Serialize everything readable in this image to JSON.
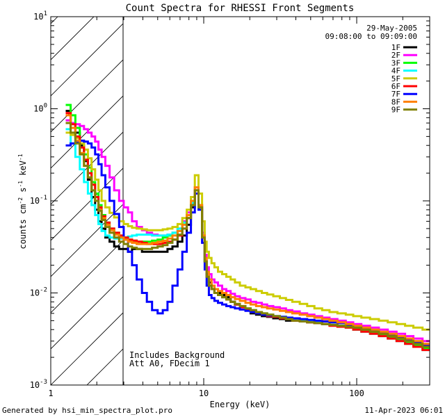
{
  "chart_data": {
    "type": "line",
    "title": "Count Spectra for RHESSI Front Segments",
    "xlabel": "Energy (keV)",
    "ylabel_base": "counts cm",
    "ylabel_sup1": "-2",
    "ylabel_mid": " s",
    "ylabel_sup2": "-1",
    "ylabel_end": " keV",
    "ylabel_sup3": "-1",
    "xscale": "log",
    "yscale": "log",
    "xlim": [
      1,
      300
    ],
    "ylim": [
      0.001,
      10
    ],
    "x_ticks": [
      {
        "value": 1,
        "label": "1"
      },
      {
        "value": 10,
        "label": "10"
      },
      {
        "value": 100,
        "label": "100"
      }
    ],
    "y_ticks": [
      {
        "value": 0.001,
        "base": "10",
        "exp": "-3"
      },
      {
        "value": 0.01,
        "base": "10",
        "exp": "-2"
      },
      {
        "value": 0.1,
        "base": "10",
        "exp": "-1"
      },
      {
        "value": 1,
        "base": "10",
        "exp": "0"
      },
      {
        "value": 10,
        "base": "10",
        "exp": "1"
      }
    ],
    "hatched_region": {
      "x_from": 1,
      "x_to": 3
    },
    "date": "29-May-2005",
    "time_range": "09:08:00 to 09:09:00",
    "annotations": [
      "Includes Background",
      "Att A0, FDecim 1"
    ],
    "series": [
      {
        "name": "1F",
        "color": "#000000",
        "values": [
          0.95,
          0.7,
          0.55,
          0.4,
          0.27,
          0.17,
          0.11,
          0.08,
          0.06,
          0.05,
          0.04,
          0.036,
          0.032,
          0.03,
          0.03,
          0.028,
          0.03,
          0.03,
          0.028,
          0.028,
          0.028,
          0.028,
          0.028,
          0.03,
          0.032,
          0.036,
          0.042,
          0.055,
          0.085,
          0.12,
          0.085,
          0.04,
          0.022,
          0.016,
          0.013,
          0.012,
          0.011,
          0.01,
          0.0095,
          0.009,
          0.008,
          0.0075,
          0.007,
          0.0065,
          0.006,
          0.0058,
          0.0056,
          0.0055,
          0.0053,
          0.0052,
          0.005,
          0.005,
          0.0049,
          0.0048,
          0.0047,
          0.0046,
          0.0045,
          0.0044,
          0.0043,
          0.0042,
          0.004,
          0.0038,
          0.0036,
          0.0034,
          0.0032,
          0.003,
          0.0028,
          0.0026
        ]
      },
      {
        "name": "2F",
        "color": "#ff00ff",
        "values": [
          0.75,
          0.7,
          0.68,
          0.65,
          0.6,
          0.55,
          0.5,
          0.44,
          0.36,
          0.3,
          0.24,
          0.18,
          0.13,
          0.1,
          0.085,
          0.075,
          0.06,
          0.052,
          0.048,
          0.045,
          0.043,
          0.042,
          0.042,
          0.043,
          0.045,
          0.05,
          0.06,
          0.075,
          0.1,
          0.14,
          0.09,
          0.045,
          0.026,
          0.019,
          0.016,
          0.014,
          0.013,
          0.012,
          0.011,
          0.0105,
          0.0098,
          0.0092,
          0.0088,
          0.0085,
          0.008,
          0.0078,
          0.0075,
          0.0072,
          0.007,
          0.0068,
          0.0065,
          0.0063,
          0.006,
          0.0058,
          0.0056,
          0.0054,
          0.0052,
          0.005,
          0.0048,
          0.0046,
          0.0044,
          0.0042,
          0.004,
          0.0038,
          0.0036,
          0.0034,
          0.0032,
          0.003
        ]
      },
      {
        "name": "3F",
        "color": "#00ff00",
        "values": [
          1.1,
          0.85,
          0.62,
          0.45,
          0.32,
          0.23,
          0.16,
          0.12,
          0.09,
          0.07,
          0.058,
          0.05,
          0.045,
          0.042,
          0.04,
          0.038,
          0.037,
          0.036,
          0.036,
          0.036,
          0.037,
          0.038,
          0.04,
          0.042,
          0.045,
          0.05,
          0.058,
          0.07,
          0.095,
          0.13,
          0.09,
          0.042,
          0.022,
          0.015,
          0.012,
          0.011,
          0.01,
          0.0095,
          0.009,
          0.0085,
          0.008,
          0.0075,
          0.007,
          0.0068,
          0.0065,
          0.0062,
          0.006,
          0.0058,
          0.0056,
          0.0055,
          0.0053,
          0.0052,
          0.005,
          0.0049,
          0.0048,
          0.0046,
          0.0045,
          0.0044,
          0.0042,
          0.004,
          0.0039,
          0.0037,
          0.0035,
          0.0033,
          0.0031,
          0.0029,
          0.0027,
          0.0025
        ]
      },
      {
        "name": "4F",
        "color": "#00ffff",
        "values": [
          0.6,
          0.42,
          0.3,
          0.22,
          0.16,
          0.12,
          0.09,
          0.07,
          0.056,
          0.047,
          0.042,
          0.04,
          0.039,
          0.039,
          0.04,
          0.041,
          0.042,
          0.043,
          0.043,
          0.043,
          0.042,
          0.042,
          0.042,
          0.043,
          0.045,
          0.05,
          0.058,
          0.07,
          0.095,
          0.13,
          0.09,
          0.042,
          0.022,
          0.015,
          0.012,
          0.011,
          0.01,
          0.0095,
          0.009,
          0.0085,
          0.008,
          0.0075,
          0.007,
          0.0066,
          0.0062,
          0.006,
          0.0058,
          0.0056,
          0.0055,
          0.0054,
          0.0052,
          0.0051,
          0.005,
          0.0049,
          0.0048,
          0.0046,
          0.0045,
          0.0044,
          0.0042,
          0.004,
          0.0038,
          0.0036,
          0.0034,
          0.0032,
          0.003,
          0.0028,
          0.0026,
          0.0024
        ]
      },
      {
        "name": "5F",
        "color": "#cccc00",
        "values": [
          0.55,
          0.52,
          0.48,
          0.42,
          0.36,
          0.29,
          0.22,
          0.17,
          0.13,
          0.1,
          0.085,
          0.074,
          0.066,
          0.06,
          0.056,
          0.053,
          0.051,
          0.05,
          0.049,
          0.048,
          0.048,
          0.048,
          0.049,
          0.05,
          0.052,
          0.056,
          0.065,
          0.08,
          0.11,
          0.19,
          0.12,
          0.06,
          0.036,
          0.028,
          0.024,
          0.021,
          0.019,
          0.017,
          0.016,
          0.015,
          0.014,
          0.013,
          0.012,
          0.0115,
          0.011,
          0.0105,
          0.01,
          0.0096,
          0.0092,
          0.0088,
          0.0084,
          0.008,
          0.0076,
          0.0072,
          0.0068,
          0.0065,
          0.0062,
          0.006,
          0.0058,
          0.0056,
          0.0054,
          0.0052,
          0.005,
          0.0048,
          0.0046,
          0.0044,
          0.0042,
          0.004
        ]
      },
      {
        "name": "6F",
        "color": "#ff0000",
        "values": [
          0.9,
          0.68,
          0.5,
          0.38,
          0.28,
          0.2,
          0.15,
          0.11,
          0.085,
          0.068,
          0.058,
          0.05,
          0.045,
          0.042,
          0.04,
          0.038,
          0.037,
          0.036,
          0.035,
          0.034,
          0.034,
          0.034,
          0.035,
          0.036,
          0.038,
          0.042,
          0.05,
          0.065,
          0.09,
          0.13,
          0.085,
          0.04,
          0.022,
          0.015,
          0.012,
          0.011,
          0.01,
          0.0095,
          0.009,
          0.0085,
          0.008,
          0.0075,
          0.007,
          0.0066,
          0.0063,
          0.006,
          0.0058,
          0.0056,
          0.0055,
          0.0053,
          0.0052,
          0.005,
          0.0049,
          0.0048,
          0.0047,
          0.0046,
          0.0044,
          0.0043,
          0.0042,
          0.004,
          0.0038,
          0.0036,
          0.0034,
          0.0032,
          0.003,
          0.0028,
          0.0026,
          0.0024
        ]
      },
      {
        "name": "7F",
        "color": "#0000ff",
        "values": [
          0.4,
          0.42,
          0.44,
          0.45,
          0.44,
          0.42,
          0.38,
          0.32,
          0.25,
          0.19,
          0.14,
          0.1,
          0.072,
          0.052,
          0.038,
          0.028,
          0.02,
          0.014,
          0.01,
          0.008,
          0.0065,
          0.006,
          0.0065,
          0.008,
          0.012,
          0.018,
          0.028,
          0.045,
          0.075,
          0.12,
          0.08,
          0.035,
          0.018,
          0.012,
          0.0095,
          0.0088,
          0.0082,
          0.0078,
          0.0075,
          0.0072,
          0.007,
          0.0068,
          0.0066,
          0.0064,
          0.0062,
          0.006,
          0.0058,
          0.0057,
          0.0056,
          0.0055,
          0.0054,
          0.0053,
          0.0052,
          0.0051,
          0.005,
          0.0049,
          0.0048,
          0.0047,
          0.0045,
          0.0043,
          0.0041,
          0.0039,
          0.0037,
          0.0035,
          0.0033,
          0.0031,
          0.0029,
          0.0027
        ]
      },
      {
        "name": "8F",
        "color": "#ff8000",
        "values": [
          0.85,
          0.62,
          0.45,
          0.33,
          0.24,
          0.18,
          0.13,
          0.1,
          0.08,
          0.065,
          0.055,
          0.048,
          0.043,
          0.04,
          0.038,
          0.036,
          0.035,
          0.034,
          0.034,
          0.034,
          0.035,
          0.036,
          0.037,
          0.039,
          0.042,
          0.047,
          0.055,
          0.07,
          0.1,
          0.14,
          0.09,
          0.042,
          0.024,
          0.017,
          0.014,
          0.012,
          0.011,
          0.0105,
          0.01,
          0.0095,
          0.009,
          0.0086,
          0.0082,
          0.0078,
          0.0075,
          0.0072,
          0.007,
          0.0068,
          0.0066,
          0.0064,
          0.0062,
          0.006,
          0.0058,
          0.0056,
          0.0054,
          0.0052,
          0.005,
          0.0048,
          0.0046,
          0.0044,
          0.0042,
          0.004,
          0.0038,
          0.0036,
          0.0034,
          0.0032,
          0.003,
          0.0028
        ]
      },
      {
        "name": "9F",
        "color": "#808000",
        "values": [
          0.7,
          0.55,
          0.42,
          0.32,
          0.24,
          0.18,
          0.13,
          0.1,
          0.078,
          0.062,
          0.052,
          0.045,
          0.04,
          0.036,
          0.034,
          0.032,
          0.031,
          0.03,
          0.03,
          0.03,
          0.031,
          0.032,
          0.033,
          0.035,
          0.038,
          0.043,
          0.05,
          0.065,
          0.09,
          0.13,
          0.085,
          0.04,
          0.022,
          0.015,
          0.012,
          0.011,
          0.01,
          0.0095,
          0.009,
          0.0085,
          0.008,
          0.0076,
          0.0072,
          0.0068,
          0.0065,
          0.0062,
          0.006,
          0.0058,
          0.0056,
          0.0054,
          0.0052,
          0.005,
          0.0049,
          0.0048,
          0.0047,
          0.0046,
          0.0045,
          0.0044,
          0.0043,
          0.0042,
          0.004,
          0.0038,
          0.0036,
          0.0034,
          0.0032,
          0.003,
          0.0028,
          0.0026
        ]
      }
    ],
    "x_energy_bins": [
      1.3,
      1.4,
      1.5,
      1.6,
      1.7,
      1.8,
      1.9,
      2.0,
      2.1,
      2.2,
      2.35,
      2.5,
      2.7,
      2.9,
      3.1,
      3.3,
      3.5,
      3.8,
      4.1,
      4.4,
      4.8,
      5.2,
      5.6,
      6.0,
      6.5,
      7.0,
      7.5,
      8.0,
      8.5,
      9.0,
      9.5,
      10.0,
      10.3,
      10.6,
      11.0,
      11.5,
      12.0,
      12.8,
      13.6,
      14.5,
      15.5,
      16.5,
      18,
      19.5,
      21,
      23,
      25,
      27,
      30,
      33,
      36,
      40,
      45,
      50,
      56,
      63,
      70,
      80,
      90,
      100,
      115,
      130,
      150,
      170,
      195,
      220,
      250,
      290
    ]
  },
  "footer": {
    "generated_by": "Generated by hsi_min_spectra_plot.pro",
    "timestamp": "11-Apr-2023 06:01"
  }
}
